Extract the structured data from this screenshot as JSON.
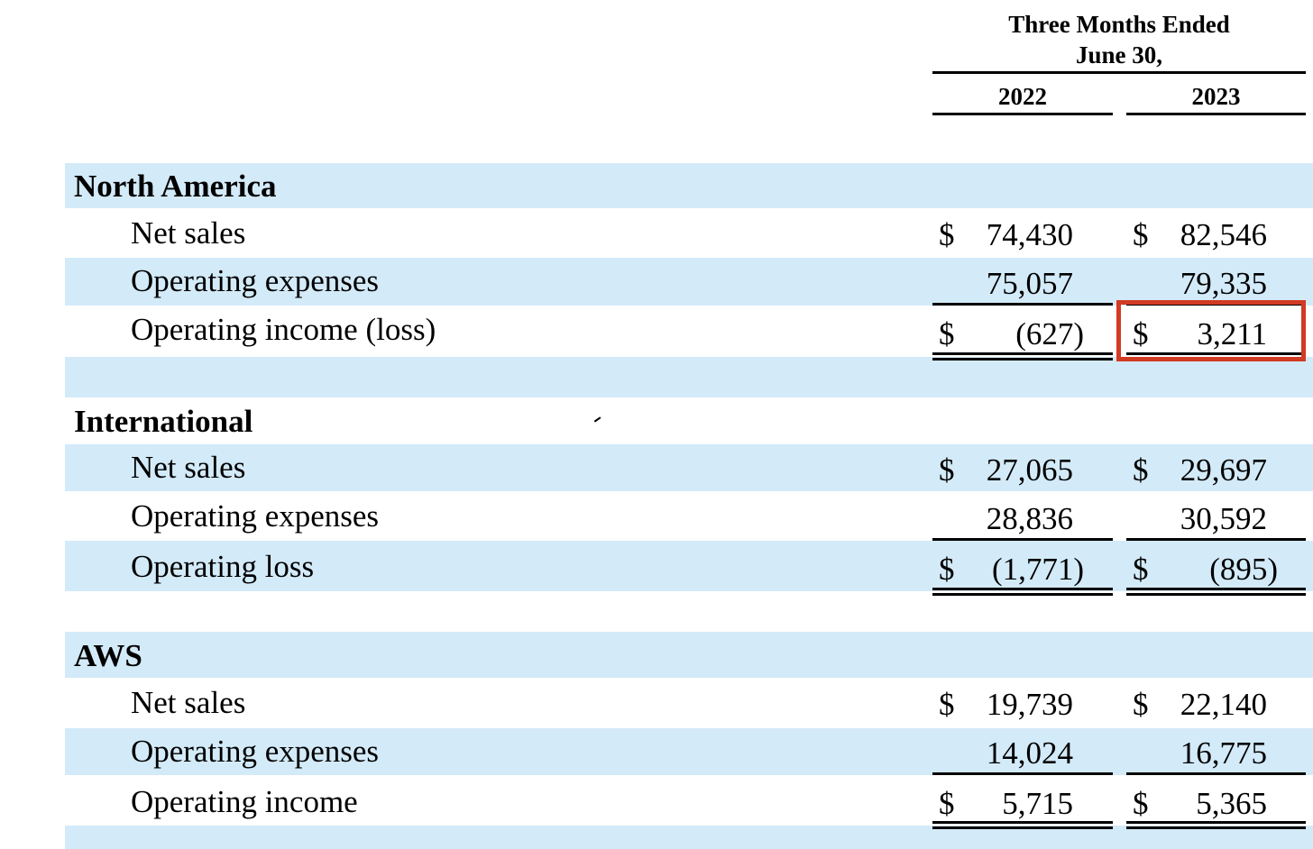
{
  "header": {
    "period_line1": "Three Months Ended",
    "period_line2": "June 30,",
    "year_1": "2022",
    "year_2": "2023"
  },
  "currency_symbol": "$",
  "sections": [
    {
      "name": "North America",
      "rows": [
        {
          "label": "Net sales",
          "v2022": "74,430",
          "v2023": "82,546"
        },
        {
          "label": "Operating expenses",
          "v2022": "75,057",
          "v2023": "79,335"
        },
        {
          "label": "Operating income (loss)",
          "v2022": "(627)",
          "v2023": "3,211"
        }
      ]
    },
    {
      "name": "International",
      "rows": [
        {
          "label": "Net sales",
          "v2022": "27,065",
          "v2023": "29,697"
        },
        {
          "label": "Operating expenses",
          "v2022": "28,836",
          "v2023": "30,592"
        },
        {
          "label": "Operating loss",
          "v2022": "(1,771)",
          "v2023": "(895)"
        }
      ]
    },
    {
      "name": "AWS",
      "rows": [
        {
          "label": "Net sales",
          "v2022": "19,739",
          "v2023": "22,140"
        },
        {
          "label": "Operating expenses",
          "v2022": "14,024",
          "v2023": "16,775"
        },
        {
          "label": "Operating income",
          "v2022": "5,715",
          "v2023": "5,365"
        }
      ]
    }
  ],
  "colors": {
    "band": "#d3eaf8",
    "highlight": "#d13a23"
  }
}
